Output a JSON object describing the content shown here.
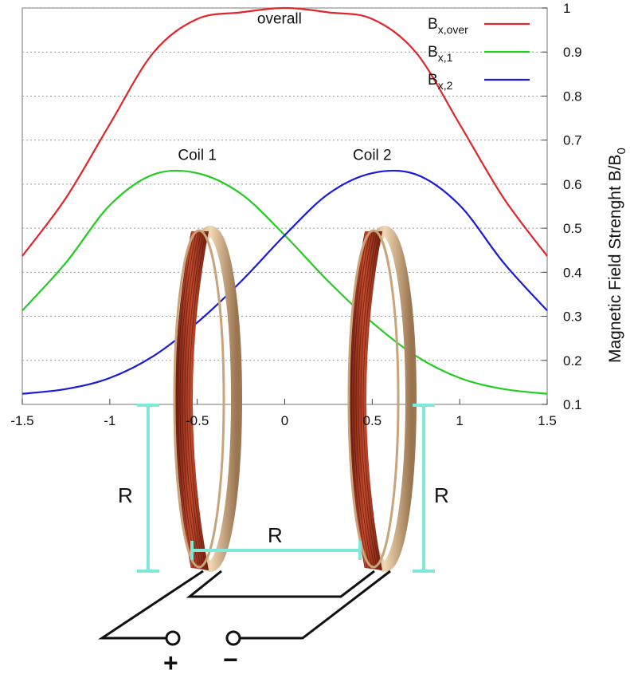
{
  "chart_data": {
    "type": "line",
    "title": "",
    "xlabel": "",
    "ylabel": "Magnetic Field Strenght B/B",
    "ylabel_subscript": "0",
    "xlim": [
      -1.5,
      1.5
    ],
    "ylim": [
      0.1,
      1.0
    ],
    "x_ticks": [
      "-1.5",
      "-1",
      "-0.5",
      "0",
      "0.5",
      "1",
      "1.5"
    ],
    "y_ticks": [
      "0.1",
      "0.2",
      "0.3",
      "0.4",
      "0.5",
      "0.6",
      "0.7",
      "0.8",
      "0.9",
      "1"
    ],
    "grid": "horizontal dashed",
    "legend_position": "top-right",
    "x": [
      -1.5,
      -1.25,
      -1.0,
      -0.75,
      -0.5,
      -0.25,
      0.0,
      0.25,
      0.5,
      0.75,
      1.0,
      1.25,
      1.5
    ],
    "series": [
      {
        "name": "B",
        "sub": "x,over",
        "color": "#e0262b",
        "values": [
          0.437,
          0.569,
          0.736,
          0.899,
          0.975,
          0.99,
          1.0,
          0.99,
          0.975,
          0.899,
          0.736,
          0.569,
          0.437
        ]
      },
      {
        "name": "B",
        "sub": "x,1",
        "color": "#22cc22",
        "values": [
          0.313,
          0.422,
          0.552,
          0.622,
          0.625,
          0.578,
          0.484,
          0.379,
          0.286,
          0.21,
          0.16,
          0.135,
          0.124
        ]
      },
      {
        "name": "B",
        "sub": "x,2",
        "color": "#1a1adb",
        "values": [
          0.124,
          0.135,
          0.16,
          0.21,
          0.286,
          0.379,
          0.484,
          0.578,
          0.625,
          0.622,
          0.552,
          0.422,
          0.313
        ]
      }
    ],
    "annotations": [
      {
        "text": "overall",
        "x": -0.03,
        "y": 0.965
      },
      {
        "text": "Coil 1",
        "x": -0.5,
        "y": 0.655
      },
      {
        "text": "Coil 2",
        "x": 0.5,
        "y": 0.655
      }
    ]
  },
  "diagram": {
    "dim_label_left": "R",
    "dim_label_middle": "R",
    "dim_label_right": "R",
    "terminal_plus": "+",
    "terminal_minus": "−",
    "dim_color": "#7fe8da",
    "wire_color": "#3a1a14",
    "copper_color": "#a83a22",
    "ring_color": "#d2b48c"
  }
}
